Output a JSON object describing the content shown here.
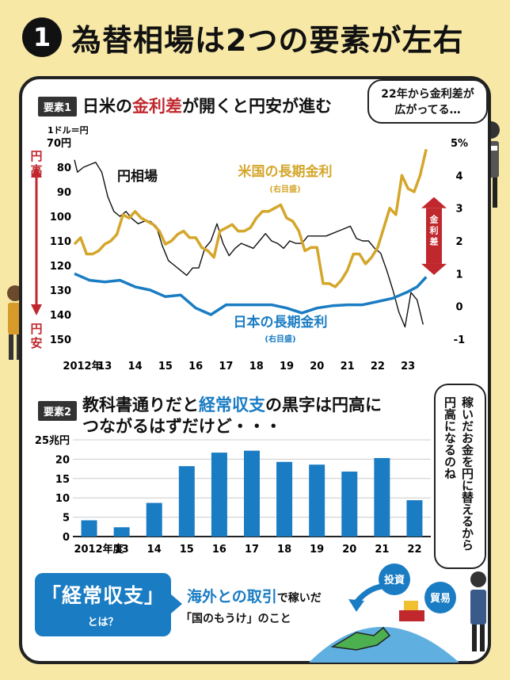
{
  "header": {
    "number": "1",
    "title": "為替相場は2つの要素が左右"
  },
  "section1": {
    "tag": "要素1",
    "title_parts": [
      "日米の",
      "金利差",
      "が開くと円安が進む"
    ],
    "bubble": [
      "22年から金利差が",
      "広がってる…"
    ],
    "left_unit": "1ドル＝円",
    "left_top_label": "円高",
    "left_bottom_label": "円安",
    "spread_label": "金利差"
  },
  "section2": {
    "tag": "要素2",
    "title_line1_parts": [
      "教科書通りだと",
      "経常収支",
      "の黒字は円高に"
    ],
    "title_line2": "つながるはずだけど・・・",
    "bubble_lines": [
      "稼いだお金を円に替えるから",
      "円高になるのね"
    ]
  },
  "footer": {
    "concept_title": "「経常収支」",
    "concept_sub": "とは？",
    "desc_highlight": "海外との取引",
    "desc_rest": "で稼いだ",
    "desc_line2": "「国のもうけ」のこと",
    "tag_investment": "投資",
    "tag_trade": "貿易"
  },
  "colors": {
    "us_rate": "#d4a62a",
    "jp_rate": "#1a7cc3",
    "yen": "#111111",
    "bar": "#1a7cc3",
    "accent_red": "#c0282e"
  },
  "chart_data": [
    {
      "type": "line",
      "series": [
        {
          "name": "円相場",
          "axis": "left",
          "x": [
            2012.0,
            2012.1,
            2012.3,
            2012.5,
            2012.7,
            2012.9,
            2013.1,
            2013.3,
            2013.5,
            2013.7,
            2013.9,
            2014.1,
            2014.3,
            2014.5,
            2014.7,
            2014.9,
            2015.1,
            2015.3,
            2015.5,
            2015.7,
            2015.9,
            2016.1,
            2016.3,
            2016.5,
            2016.7,
            2016.9,
            2017.1,
            2017.3,
            2017.5,
            2017.7,
            2017.9,
            2018.1,
            2018.3,
            2018.5,
            2018.7,
            2018.9,
            2019.1,
            2019.3,
            2019.5,
            2019.7,
            2019.9,
            2020.1,
            2020.3,
            2020.5,
            2020.7,
            2020.9,
            2021.1,
            2021.3,
            2021.5,
            2021.7,
            2021.9,
            2022.1,
            2022.3,
            2022.5,
            2022.7,
            2022.9,
            2023.1,
            2023.3,
            2023.5
          ],
          "y": [
            77,
            82,
            80,
            79,
            78,
            82,
            92,
            98,
            100,
            98,
            101,
            103,
            102,
            102,
            104,
            112,
            118,
            120,
            122,
            124,
            121,
            121,
            113,
            110,
            103,
            111,
            116,
            113,
            111,
            112,
            113,
            110,
            107,
            110,
            111,
            113,
            110,
            111,
            111,
            108,
            108,
            108,
            108,
            107,
            106,
            105,
            104,
            109,
            110,
            110,
            113,
            115,
            122,
            130,
            139,
            145,
            131,
            134,
            144
          ]
        },
        {
          "name": "米国の長期金利",
          "axis": "right",
          "note": "(右目盛)",
          "x": [
            2012.0,
            2012.2,
            2012.4,
            2012.6,
            2012.8,
            2013.0,
            2013.2,
            2013.4,
            2013.6,
            2013.8,
            2014.0,
            2014.2,
            2014.4,
            2014.6,
            2014.8,
            2015.0,
            2015.2,
            2015.4,
            2015.6,
            2015.8,
            2016.0,
            2016.2,
            2016.4,
            2016.6,
            2016.8,
            2017.0,
            2017.2,
            2017.4,
            2017.6,
            2017.8,
            2018.0,
            2018.2,
            2018.4,
            2018.6,
            2018.8,
            2019.0,
            2019.2,
            2019.4,
            2019.6,
            2019.8,
            2020.0,
            2020.2,
            2020.4,
            2020.6,
            2020.8,
            2021.0,
            2021.2,
            2021.4,
            2021.6,
            2021.8,
            2022.0,
            2022.2,
            2022.4,
            2022.6,
            2022.8,
            2023.0,
            2023.2,
            2023.4,
            2023.6
          ],
          "y": [
            1.9,
            2.1,
            1.6,
            1.6,
            1.7,
            1.9,
            2.0,
            2.2,
            2.8,
            2.7,
            2.9,
            2.7,
            2.6,
            2.5,
            2.3,
            1.9,
            2.0,
            2.2,
            2.3,
            2.1,
            2.1,
            1.8,
            1.7,
            1.5,
            2.3,
            2.4,
            2.5,
            2.3,
            2.3,
            2.4,
            2.7,
            2.9,
            2.9,
            3.0,
            3.1,
            2.7,
            2.6,
            2.3,
            1.7,
            1.8,
            1.8,
            0.7,
            0.7,
            0.6,
            0.8,
            1.1,
            1.6,
            1.6,
            1.3,
            1.5,
            1.8,
            2.4,
            3.0,
            2.8,
            4.0,
            3.6,
            3.5,
            4.0,
            4.8
          ]
        },
        {
          "name": "日本の長期金利",
          "axis": "right",
          "note": "(右目盛)",
          "x": [
            2012.0,
            2012.5,
            2013.0,
            2013.5,
            2014.0,
            2014.5,
            2015.0,
            2015.5,
            2016.0,
            2016.5,
            2017.0,
            2017.5,
            2018.0,
            2018.5,
            2019.0,
            2019.5,
            2020.0,
            2020.5,
            2021.0,
            2021.5,
            2022.0,
            2022.5,
            2023.0,
            2023.3,
            2023.6
          ],
          "y": [
            1.0,
            0.8,
            0.75,
            0.8,
            0.6,
            0.5,
            0.3,
            0.35,
            -0.05,
            -0.25,
            0.05,
            0.05,
            0.05,
            0.05,
            -0.05,
            -0.2,
            -0.05,
            0.02,
            0.05,
            0.05,
            0.15,
            0.25,
            0.45,
            0.6,
            0.9
          ]
        }
      ],
      "x_ticks": [
        "2012年",
        "13",
        "14",
        "15",
        "16",
        "17",
        "18",
        "19",
        "20",
        "21",
        "22",
        "23"
      ],
      "y_left_ticks": [
        "70円",
        "80",
        "90",
        "100",
        "110",
        "120",
        "130",
        "140",
        "150"
      ],
      "y_left_range": [
        70,
        150
      ],
      "y_left_inverted": true,
      "y_right_ticks": [
        "5%",
        "4",
        "3",
        "2",
        "1",
        "0",
        "-1"
      ],
      "y_right_range": [
        -1,
        5
      ]
    },
    {
      "type": "bar",
      "unit": "兆円",
      "categories": [
        "2012年度",
        "13",
        "14",
        "15",
        "16",
        "17",
        "18",
        "19",
        "20",
        "21",
        "22"
      ],
      "values": [
        4.2,
        2.4,
        8.7,
        18.2,
        21.7,
        22.2,
        19.3,
        18.6,
        16.8,
        20.3,
        9.4
      ],
      "y_ticks": [
        "25兆円",
        "20",
        "15",
        "10",
        "5",
        "0"
      ],
      "ylim": [
        0,
        25
      ]
    }
  ]
}
